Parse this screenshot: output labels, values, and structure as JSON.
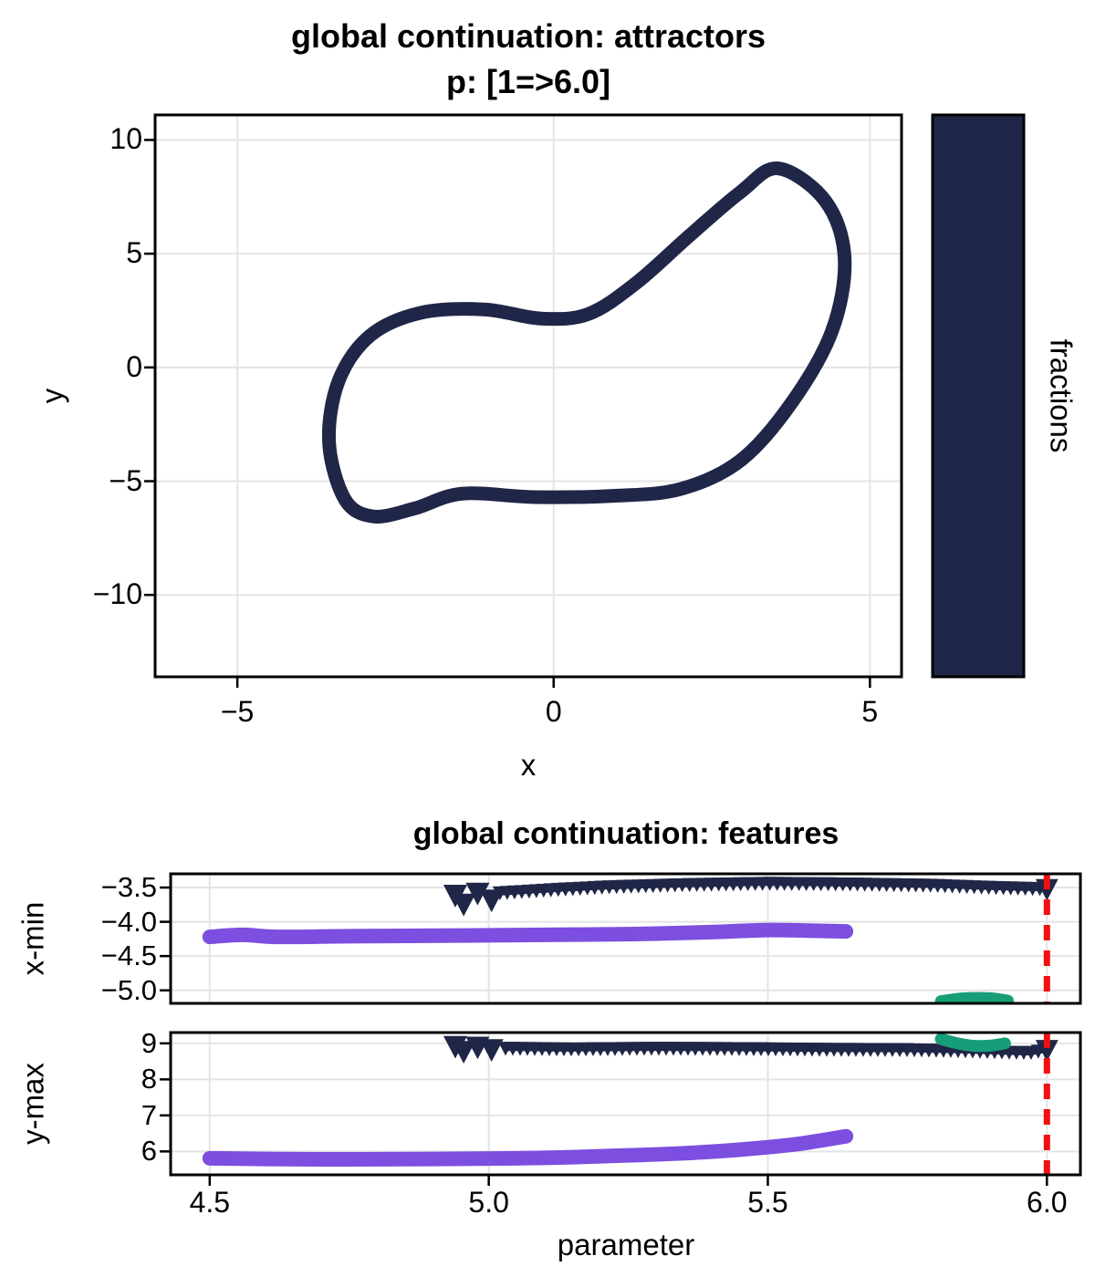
{
  "figure": {
    "background": "#ffffff",
    "grid_color": "#e4e4e4",
    "frame_color": "#000000"
  },
  "colors": {
    "attractor_1": "#202647",
    "attractor_2": "#7c4fe0",
    "attractor_3": "#179d78",
    "continuation_end_line": "#ee1111"
  },
  "chart_data": [
    {
      "id": "attractors-phase-plot",
      "type": "line",
      "title": "global continuation: attractors",
      "subtitle": "p: [1=>6.0]",
      "xlabel": "x",
      "ylabel": "y",
      "xlim": [
        -6.3,
        5.5
      ],
      "ylim": [
        -13.6,
        11.1
      ],
      "grid": true,
      "xticks": {
        "values": [
          -5,
          0,
          5
        ],
        "labels": [
          "−5",
          "0",
          "5"
        ]
      },
      "yticks": {
        "values": [
          10,
          5,
          0,
          -5,
          -10
        ],
        "labels": [
          "10",
          "5",
          "0",
          "−5",
          "−10"
        ]
      },
      "series": [
        {
          "name": "attractor-1-limit-cycle",
          "color": "#202647",
          "style": "closed-curve",
          "linewidth": 15,
          "points": [
            [
              3.55,
              8.75
            ],
            [
              4.3,
              7.3
            ],
            [
              4.6,
              4.8
            ],
            [
              4.4,
              1.6
            ],
            [
              3.75,
              -1.6
            ],
            [
              2.95,
              -4.1
            ],
            [
              2.0,
              -5.35
            ],
            [
              0.9,
              -5.65
            ],
            [
              -0.3,
              -5.7
            ],
            [
              -1.45,
              -5.55
            ],
            [
              -2.2,
              -6.2
            ],
            [
              -2.85,
              -6.55
            ],
            [
              -3.3,
              -5.8
            ],
            [
              -3.55,
              -3.3
            ],
            [
              -3.4,
              -0.6
            ],
            [
              -2.9,
              1.4
            ],
            [
              -2.1,
              2.4
            ],
            [
              -1.1,
              2.55
            ],
            [
              -0.2,
              2.15
            ],
            [
              0.55,
              2.35
            ],
            [
              1.3,
              3.7
            ],
            [
              2.15,
              5.8
            ],
            [
              2.95,
              7.7
            ]
          ]
        }
      ]
    },
    {
      "id": "fractions-colorbar",
      "type": "bar",
      "label": "fractions",
      "segments": [
        {
          "name": "attractor-1",
          "color": "#202647",
          "fraction": 1.0
        }
      ]
    },
    {
      "id": "features-continuation",
      "type": "scatter",
      "title": "global continuation: features",
      "xlabel": "parameter",
      "xlim": [
        4.43,
        6.06
      ],
      "xticks": {
        "values": [
          4.5,
          5.0,
          5.5,
          6.0
        ],
        "labels": [
          "4.5",
          "5.0",
          "5.5",
          "6.0"
        ]
      },
      "subplots": [
        {
          "ylabel": "x-min",
          "ylim": [
            -5.19,
            -3.3
          ],
          "yticks": {
            "values": [
              -3.5,
              -4.0,
              -4.5,
              -5.0
            ],
            "labels": [
              "−3.5",
              "−4.0",
              "−4.5",
              "−5.0"
            ]
          },
          "series": [
            {
              "name": "attractor-2-xmin",
              "color": "#7c4fe0",
              "style": "thick-line",
              "marker": "circle",
              "linewidth": 16,
              "points": [
                [
                  4.5,
                  -4.22
                ],
                [
                  4.56,
                  -4.19
                ],
                [
                  4.62,
                  -4.22
                ],
                [
                  4.75,
                  -4.21
                ],
                [
                  4.95,
                  -4.2
                ],
                [
                  5.1,
                  -4.19
                ],
                [
                  5.25,
                  -4.18
                ],
                [
                  5.4,
                  -4.15
                ],
                [
                  5.5,
                  -4.12
                ],
                [
                  5.58,
                  -4.13
                ],
                [
                  5.64,
                  -4.14
                ]
              ]
            },
            {
              "name": "attractor-1-xmin",
              "color": "#202647",
              "style": "triangle-band",
              "marker": "triangle-down",
              "size": 13,
              "head_points": [
                [
                  4.94,
                  -3.6
                ],
                [
                  4.955,
                  -3.73
                ],
                [
                  4.98,
                  -3.57
                ],
                [
                  5.005,
                  -3.67
                ]
              ],
              "points": [
                [
                  5.02,
                  -3.57
                ],
                [
                  5.06,
                  -3.55
                ],
                [
                  5.12,
                  -3.52
                ],
                [
                  5.22,
                  -3.48
                ],
                [
                  5.35,
                  -3.45
                ],
                [
                  5.5,
                  -3.43
                ],
                [
                  5.65,
                  -3.44
                ],
                [
                  5.8,
                  -3.46
                ],
                [
                  5.9,
                  -3.49
                ],
                [
                  6.0,
                  -3.51
                ]
              ]
            },
            {
              "name": "attractor-3-xmin",
              "color": "#179d78",
              "style": "thick-line",
              "marker": "circle",
              "linewidth": 13,
              "points": [
                [
                  5.81,
                  -5.16
                ],
                [
                  5.845,
                  -5.12
                ],
                [
                  5.875,
                  -5.11
                ],
                [
                  5.905,
                  -5.12
                ],
                [
                  5.93,
                  -5.15
                ]
              ]
            },
            {
              "name": "continuation-end-vline",
              "color": "#ee1111",
              "style": "vline-dashed",
              "x": 6.0,
              "linewidth": 7
            }
          ]
        },
        {
          "ylabel": "y-max",
          "ylim": [
            5.35,
            9.3
          ],
          "yticks": {
            "values": [
              9,
              8,
              7,
              6
            ],
            "labels": [
              "9",
              "8",
              "7",
              "6"
            ]
          },
          "series": [
            {
              "name": "attractor-2-ymax",
              "color": "#7c4fe0",
              "style": "thick-line",
              "marker": "circle",
              "linewidth": 16,
              "points": [
                [
                  4.5,
                  5.81
                ],
                [
                  4.6,
                  5.79
                ],
                [
                  4.75,
                  5.78
                ],
                [
                  4.9,
                  5.79
                ],
                [
                  5.05,
                  5.81
                ],
                [
                  5.15,
                  5.84
                ],
                [
                  5.25,
                  5.89
                ],
                [
                  5.35,
                  5.95
                ],
                [
                  5.45,
                  6.05
                ],
                [
                  5.55,
                  6.2
                ],
                [
                  5.64,
                  6.42
                ]
              ]
            },
            {
              "name": "attractor-1-ymax",
              "color": "#202647",
              "style": "triangle-band",
              "marker": "triangle-down",
              "size": 13,
              "head_points": [
                [
                  4.94,
                  8.94
                ],
                [
                  4.955,
                  8.8
                ],
                [
                  4.98,
                  8.92
                ],
                [
                  5.005,
                  8.85
                ]
              ],
              "points": [
                [
                  5.03,
                  8.88
                ],
                [
                  5.15,
                  8.86
                ],
                [
                  5.3,
                  8.88
                ],
                [
                  5.45,
                  8.87
                ],
                [
                  5.6,
                  8.85
                ],
                [
                  5.75,
                  8.84
                ],
                [
                  5.85,
                  8.81
                ],
                [
                  5.93,
                  8.77
                ],
                [
                  5.97,
                  8.76
                ],
                [
                  6.0,
                  8.84
                ]
              ]
            },
            {
              "name": "attractor-3-ymax",
              "color": "#179d78",
              "style": "thick-line",
              "marker": "circle",
              "linewidth": 13,
              "points": [
                [
                  5.81,
                  9.12
                ],
                [
                  5.84,
                  9.0
                ],
                [
                  5.87,
                  8.93
                ],
                [
                  5.9,
                  8.94
                ],
                [
                  5.925,
                  9.0
                ]
              ]
            },
            {
              "name": "continuation-end-vline",
              "color": "#ee1111",
              "style": "vline-dashed",
              "x": 6.0,
              "linewidth": 7
            }
          ]
        }
      ]
    }
  ]
}
